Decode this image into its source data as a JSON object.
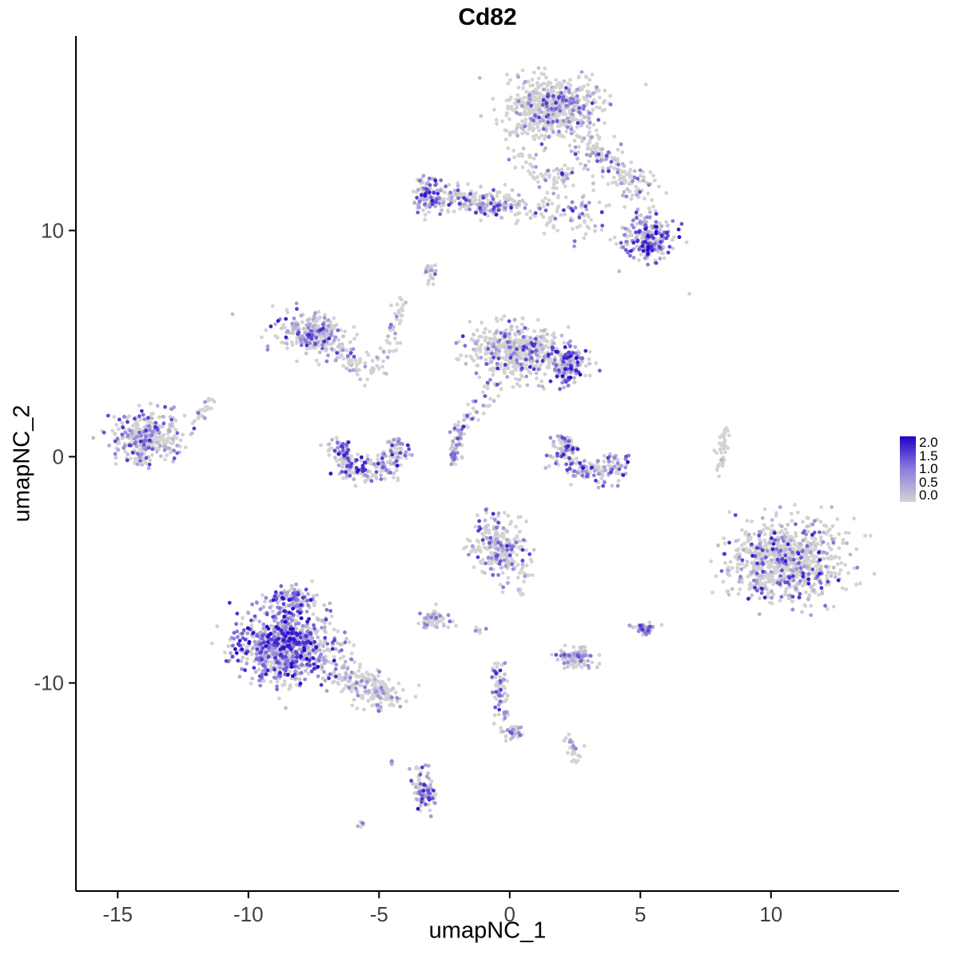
{
  "chart_data": {
    "type": "scatter",
    "title": "Cd82",
    "xlabel": "umapNC_1",
    "ylabel": "umapNC_2",
    "xlim": [
      -16.6,
      14.9
    ],
    "ylim": [
      -19.2,
      18.6
    ],
    "x_ticks": [
      -15,
      -10,
      -5,
      0,
      5,
      10
    ],
    "y_ticks": [
      -10,
      0,
      10
    ],
    "grid": false,
    "legend_position": "right",
    "point_radius": 2.4,
    "seed": 42,
    "color_scale": {
      "description": "expression of Cd82, lightgrey = 0 to blue = 2",
      "stops": [
        "#D3D3D3",
        "#8B7EDC",
        "#2101C8"
      ],
      "domain": [
        0.0,
        1.0,
        2.0
      ]
    },
    "legend": {
      "labels": [
        "2.0",
        "1.5",
        "1.0",
        "0.5",
        "0.0"
      ]
    },
    "clusters": [
      {
        "name": "top-cap",
        "shape": "blob",
        "cx": 1.6,
        "cy": 15.4,
        "rx": 1.85,
        "ry": 1.35,
        "rot": 0,
        "n": 620,
        "p0": 0.74,
        "emax": 1.7
      },
      {
        "name": "top-cap-arm",
        "shape": "streak",
        "x1": 2.9,
        "y1": 13.9,
        "x2": 5.2,
        "y2": 11.5,
        "w": 0.75,
        "n": 170,
        "p0": 0.74,
        "emax": 1.6
      },
      {
        "name": "top-scatter",
        "shape": "streak",
        "x1": 0.3,
        "y1": 13.6,
        "x2": 1.6,
        "y2": 12.1,
        "w": 0.7,
        "n": 40,
        "p0": 0.8,
        "emax": 1.2
      },
      {
        "name": "band-right-dots",
        "shape": "blob",
        "cx": 2.0,
        "cy": 12.4,
        "rx": 0.5,
        "ry": 0.55,
        "rot": 0,
        "n": 30,
        "p0": 0.6,
        "emax": 1.8
      },
      {
        "name": "upper-band-left",
        "shape": "blob",
        "cx": -3.1,
        "cy": 11.6,
        "rx": 0.55,
        "ry": 0.8,
        "rot": 0,
        "n": 95,
        "p0": 0.25,
        "emax": 2.0
      },
      {
        "name": "upper-band-mid",
        "shape": "streak",
        "x1": -2.5,
        "y1": 11.5,
        "x2": 0.4,
        "y2": 11.0,
        "w": 0.65,
        "n": 210,
        "p0": 0.55,
        "emax": 1.8
      },
      {
        "name": "upper-band-right",
        "shape": "streak",
        "x1": 0.9,
        "y1": 11.1,
        "x2": 3.3,
        "y2": 10.4,
        "w": 0.8,
        "n": 90,
        "p0": 0.7,
        "emax": 1.7
      },
      {
        "name": "upper-right-knot",
        "shape": "blob",
        "cx": 5.3,
        "cy": 9.7,
        "rx": 1.0,
        "ry": 1.05,
        "rot": 0,
        "n": 230,
        "p0": 0.25,
        "emax": 2.0
      },
      {
        "name": "small-spur",
        "shape": "blob",
        "cx": -3.05,
        "cy": 8.2,
        "rx": 0.22,
        "ry": 0.55,
        "rot": 0,
        "n": 26,
        "p0": 0.45,
        "emax": 1.6
      },
      {
        "name": "left-mid-cluster",
        "shape": "blob",
        "cx": -7.6,
        "cy": 5.4,
        "rx": 1.35,
        "ry": 0.95,
        "rot": -25,
        "n": 260,
        "p0": 0.5,
        "emax": 1.8
      },
      {
        "name": "left-mid-arm",
        "shape": "streak",
        "x1": -6.6,
        "y1": 4.5,
        "x2": -5.1,
        "y2": 3.8,
        "w": 0.5,
        "n": 60,
        "p0": 0.6,
        "emax": 1.4
      },
      {
        "name": "thin-trail",
        "shape": "streak",
        "x1": -4.8,
        "y1": 4.2,
        "x2": -4.1,
        "y2": 7.0,
        "w": 0.35,
        "n": 42,
        "p0": 0.6,
        "emax": 1.5
      },
      {
        "name": "center-cluster",
        "shape": "blob",
        "cx": 0.3,
        "cy": 4.7,
        "rx": 1.75,
        "ry": 1.2,
        "rot": -10,
        "n": 480,
        "p0": 0.62,
        "emax": 1.7
      },
      {
        "name": "center-cluster-east",
        "shape": "blob",
        "cx": 2.2,
        "cy": 4.1,
        "rx": 0.7,
        "ry": 0.85,
        "rot": 0,
        "n": 150,
        "p0": 0.3,
        "emax": 2.0
      },
      {
        "name": "center-trail-down",
        "shape": "streak",
        "x1": -0.5,
        "y1": 3.3,
        "x2": -1.9,
        "y2": 1.1,
        "w": 0.4,
        "n": 46,
        "p0": 0.6,
        "emax": 1.5
      },
      {
        "name": "far-left-cluster",
        "shape": "blob",
        "cx": -13.8,
        "cy": 0.9,
        "rx": 1.35,
        "ry": 1.1,
        "rot": 10,
        "n": 340,
        "p0": 0.55,
        "emax": 1.7
      },
      {
        "name": "far-left-spur",
        "shape": "streak",
        "x1": -11.9,
        "y1": 1.7,
        "x2": -11.4,
        "y2": 2.5,
        "w": 0.28,
        "n": 22,
        "p0": 0.75,
        "emax": 1.2
      },
      {
        "name": "u-cluster",
        "shape": "arc",
        "cx": -5.4,
        "cy": 0.4,
        "r": 1.1,
        "a0": 160,
        "a1": 380,
        "w": 0.55,
        "n": 250,
        "p0": 0.45,
        "emax": 1.9
      },
      {
        "name": "mid-streak",
        "shape": "streak",
        "x1": -2.15,
        "y1": -0.3,
        "x2": -1.95,
        "y2": 1.4,
        "w": 0.22,
        "n": 45,
        "p0": 0.35,
        "emax": 1.8
      },
      {
        "name": "hook-cluster",
        "shape": "arc",
        "cx": 3.2,
        "cy": 0.3,
        "r": 1.05,
        "a0": 150,
        "a1": 350,
        "w": 0.6,
        "n": 230,
        "p0": 0.45,
        "emax": 1.9
      },
      {
        "name": "right-thin-line",
        "shape": "streak",
        "x1": 8.0,
        "y1": -0.6,
        "x2": 8.25,
        "y2": 1.2,
        "w": 0.22,
        "n": 40,
        "p0": 0.93,
        "emax": 0.8
      },
      {
        "name": "mid-south-cluster",
        "shape": "blob",
        "cx": -0.35,
        "cy": -4.0,
        "rx": 1.05,
        "ry": 1.5,
        "rot": 15,
        "n": 270,
        "p0": 0.62,
        "emax": 1.7
      },
      {
        "name": "small-west-blob",
        "shape": "blob",
        "cx": -2.85,
        "cy": -7.2,
        "rx": 0.55,
        "ry": 0.4,
        "rot": 0,
        "n": 60,
        "p0": 0.55,
        "emax": 1.6
      },
      {
        "name": "tiny-dots-a",
        "shape": "blob",
        "cx": -1.15,
        "cy": -7.7,
        "rx": 0.18,
        "ry": 0.14,
        "rot": 0,
        "n": 7,
        "p0": 0.6,
        "emax": 1.2
      },
      {
        "name": "tiny-dots-b",
        "shape": "blob",
        "cx": 0.4,
        "cy": -5.9,
        "rx": 0.15,
        "ry": 0.25,
        "rot": 0,
        "n": 6,
        "p0": 0.6,
        "emax": 1.2
      },
      {
        "name": "southwest-main",
        "shape": "blob",
        "cx": -8.6,
        "cy": -8.4,
        "rx": 1.8,
        "ry": 1.55,
        "rot": 0,
        "n": 880,
        "p0": 0.22,
        "emax": 2.0
      },
      {
        "name": "southwest-crown",
        "shape": "blob",
        "cx": -8.3,
        "cy": -6.3,
        "rx": 1.0,
        "ry": 0.6,
        "rot": 0,
        "n": 120,
        "p0": 0.3,
        "emax": 1.9
      },
      {
        "name": "southwest-tail",
        "shape": "streak",
        "x1": -6.5,
        "y1": -9.6,
        "x2": -4.4,
        "y2": -10.7,
        "w": 0.75,
        "n": 210,
        "p0": 0.72,
        "emax": 1.2
      },
      {
        "name": "small-south-mid",
        "shape": "blob",
        "cx": 2.5,
        "cy": -8.9,
        "rx": 0.75,
        "ry": 0.5,
        "rot": 0,
        "n": 110,
        "p0": 0.5,
        "emax": 1.5
      },
      {
        "name": "east-cluster",
        "shape": "blob",
        "cx": 10.6,
        "cy": -4.6,
        "rx": 2.25,
        "ry": 1.8,
        "rot": 0,
        "n": 820,
        "p0": 0.68,
        "emax": 1.8
      },
      {
        "name": "small-knot",
        "shape": "blob",
        "cx": 5.2,
        "cy": -7.6,
        "rx": 0.42,
        "ry": 0.3,
        "rot": 0,
        "n": 45,
        "p0": 0.45,
        "emax": 1.6
      },
      {
        "name": "south-streak",
        "shape": "streak",
        "x1": -0.5,
        "y1": -9.2,
        "x2": -0.25,
        "y2": -11.6,
        "w": 0.3,
        "n": 70,
        "p0": 0.5,
        "emax": 1.7
      },
      {
        "name": "south-blob",
        "shape": "blob",
        "cx": 0.1,
        "cy": -12.2,
        "rx": 0.4,
        "ry": 0.35,
        "rot": 0,
        "n": 34,
        "p0": 0.55,
        "emax": 1.4
      },
      {
        "name": "south-spur",
        "shape": "streak",
        "x1": 2.2,
        "y1": -12.4,
        "x2": 2.6,
        "y2": -13.3,
        "w": 0.25,
        "n": 28,
        "p0": 0.8,
        "emax": 1.0
      },
      {
        "name": "south-purple-column",
        "shape": "blob",
        "cx": -3.3,
        "cy": -14.7,
        "rx": 0.38,
        "ry": 1.05,
        "rot": 10,
        "n": 95,
        "p0": 0.3,
        "emax": 1.9
      },
      {
        "name": "tiny-dots-c",
        "shape": "blob",
        "cx": -5.6,
        "cy": -16.2,
        "rx": 0.2,
        "ry": 0.15,
        "rot": 0,
        "n": 6,
        "p0": 0.5,
        "emax": 1.3
      },
      {
        "name": "tiny-dots-d",
        "shape": "blob",
        "cx": -4.5,
        "cy": -13.6,
        "rx": 0.15,
        "ry": 0.12,
        "rot": 0,
        "n": 4,
        "p0": 0.6,
        "emax": 1.0
      },
      {
        "name": "lone-dot-west",
        "shape": "blob",
        "cx": -10.6,
        "cy": 6.3,
        "rx": 0.05,
        "ry": 0.05,
        "rot": 0,
        "n": 1,
        "p0": 0.0,
        "emax": 1.0
      },
      {
        "name": "lone-dot-east",
        "shape": "blob",
        "cx": 6.9,
        "cy": 7.2,
        "rx": 0.05,
        "ry": 0.05,
        "rot": 0,
        "n": 1,
        "p0": 1.0,
        "emax": 0.0
      }
    ]
  }
}
